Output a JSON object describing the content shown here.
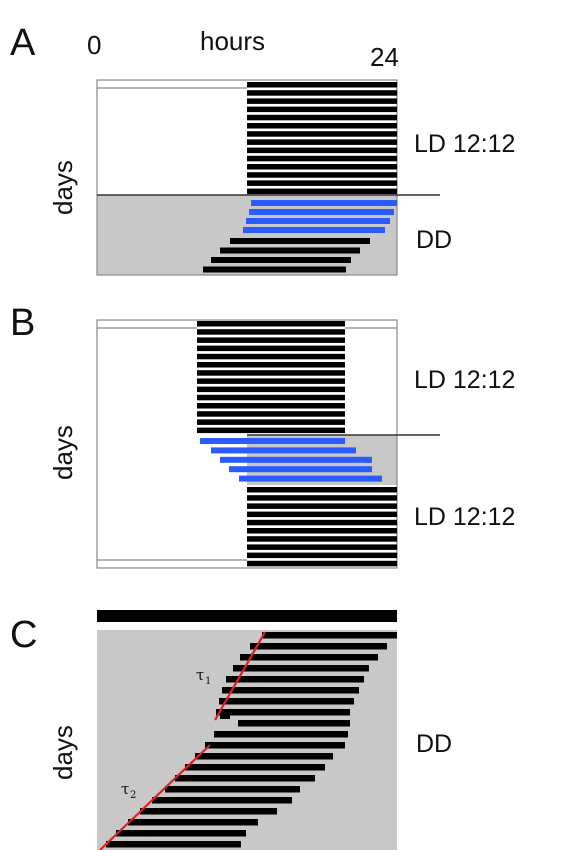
{
  "panels": {
    "A": {
      "letter": "A",
      "axis_start": "0",
      "axis_label": "hours",
      "axis_end": "24",
      "ylabel": "days",
      "condition_top": "LD 12:12",
      "condition_bottom": "DD"
    },
    "B": {
      "letter": "B",
      "ylabel": "days",
      "condition_top": "LD 12:12",
      "condition_bottom": "LD 12:12"
    },
    "C": {
      "letter": "C",
      "ylabel": "days",
      "condition": "DD",
      "tau1_label": "τ",
      "tau1_sub": "1",
      "tau2_label": "τ",
      "tau2_sub": "2"
    }
  },
  "colors": {
    "activity": "#000000",
    "shifted_activity": "#2a5bff",
    "dark_phase": "#c8c8c8",
    "period_fit": "#e02020"
  }
}
